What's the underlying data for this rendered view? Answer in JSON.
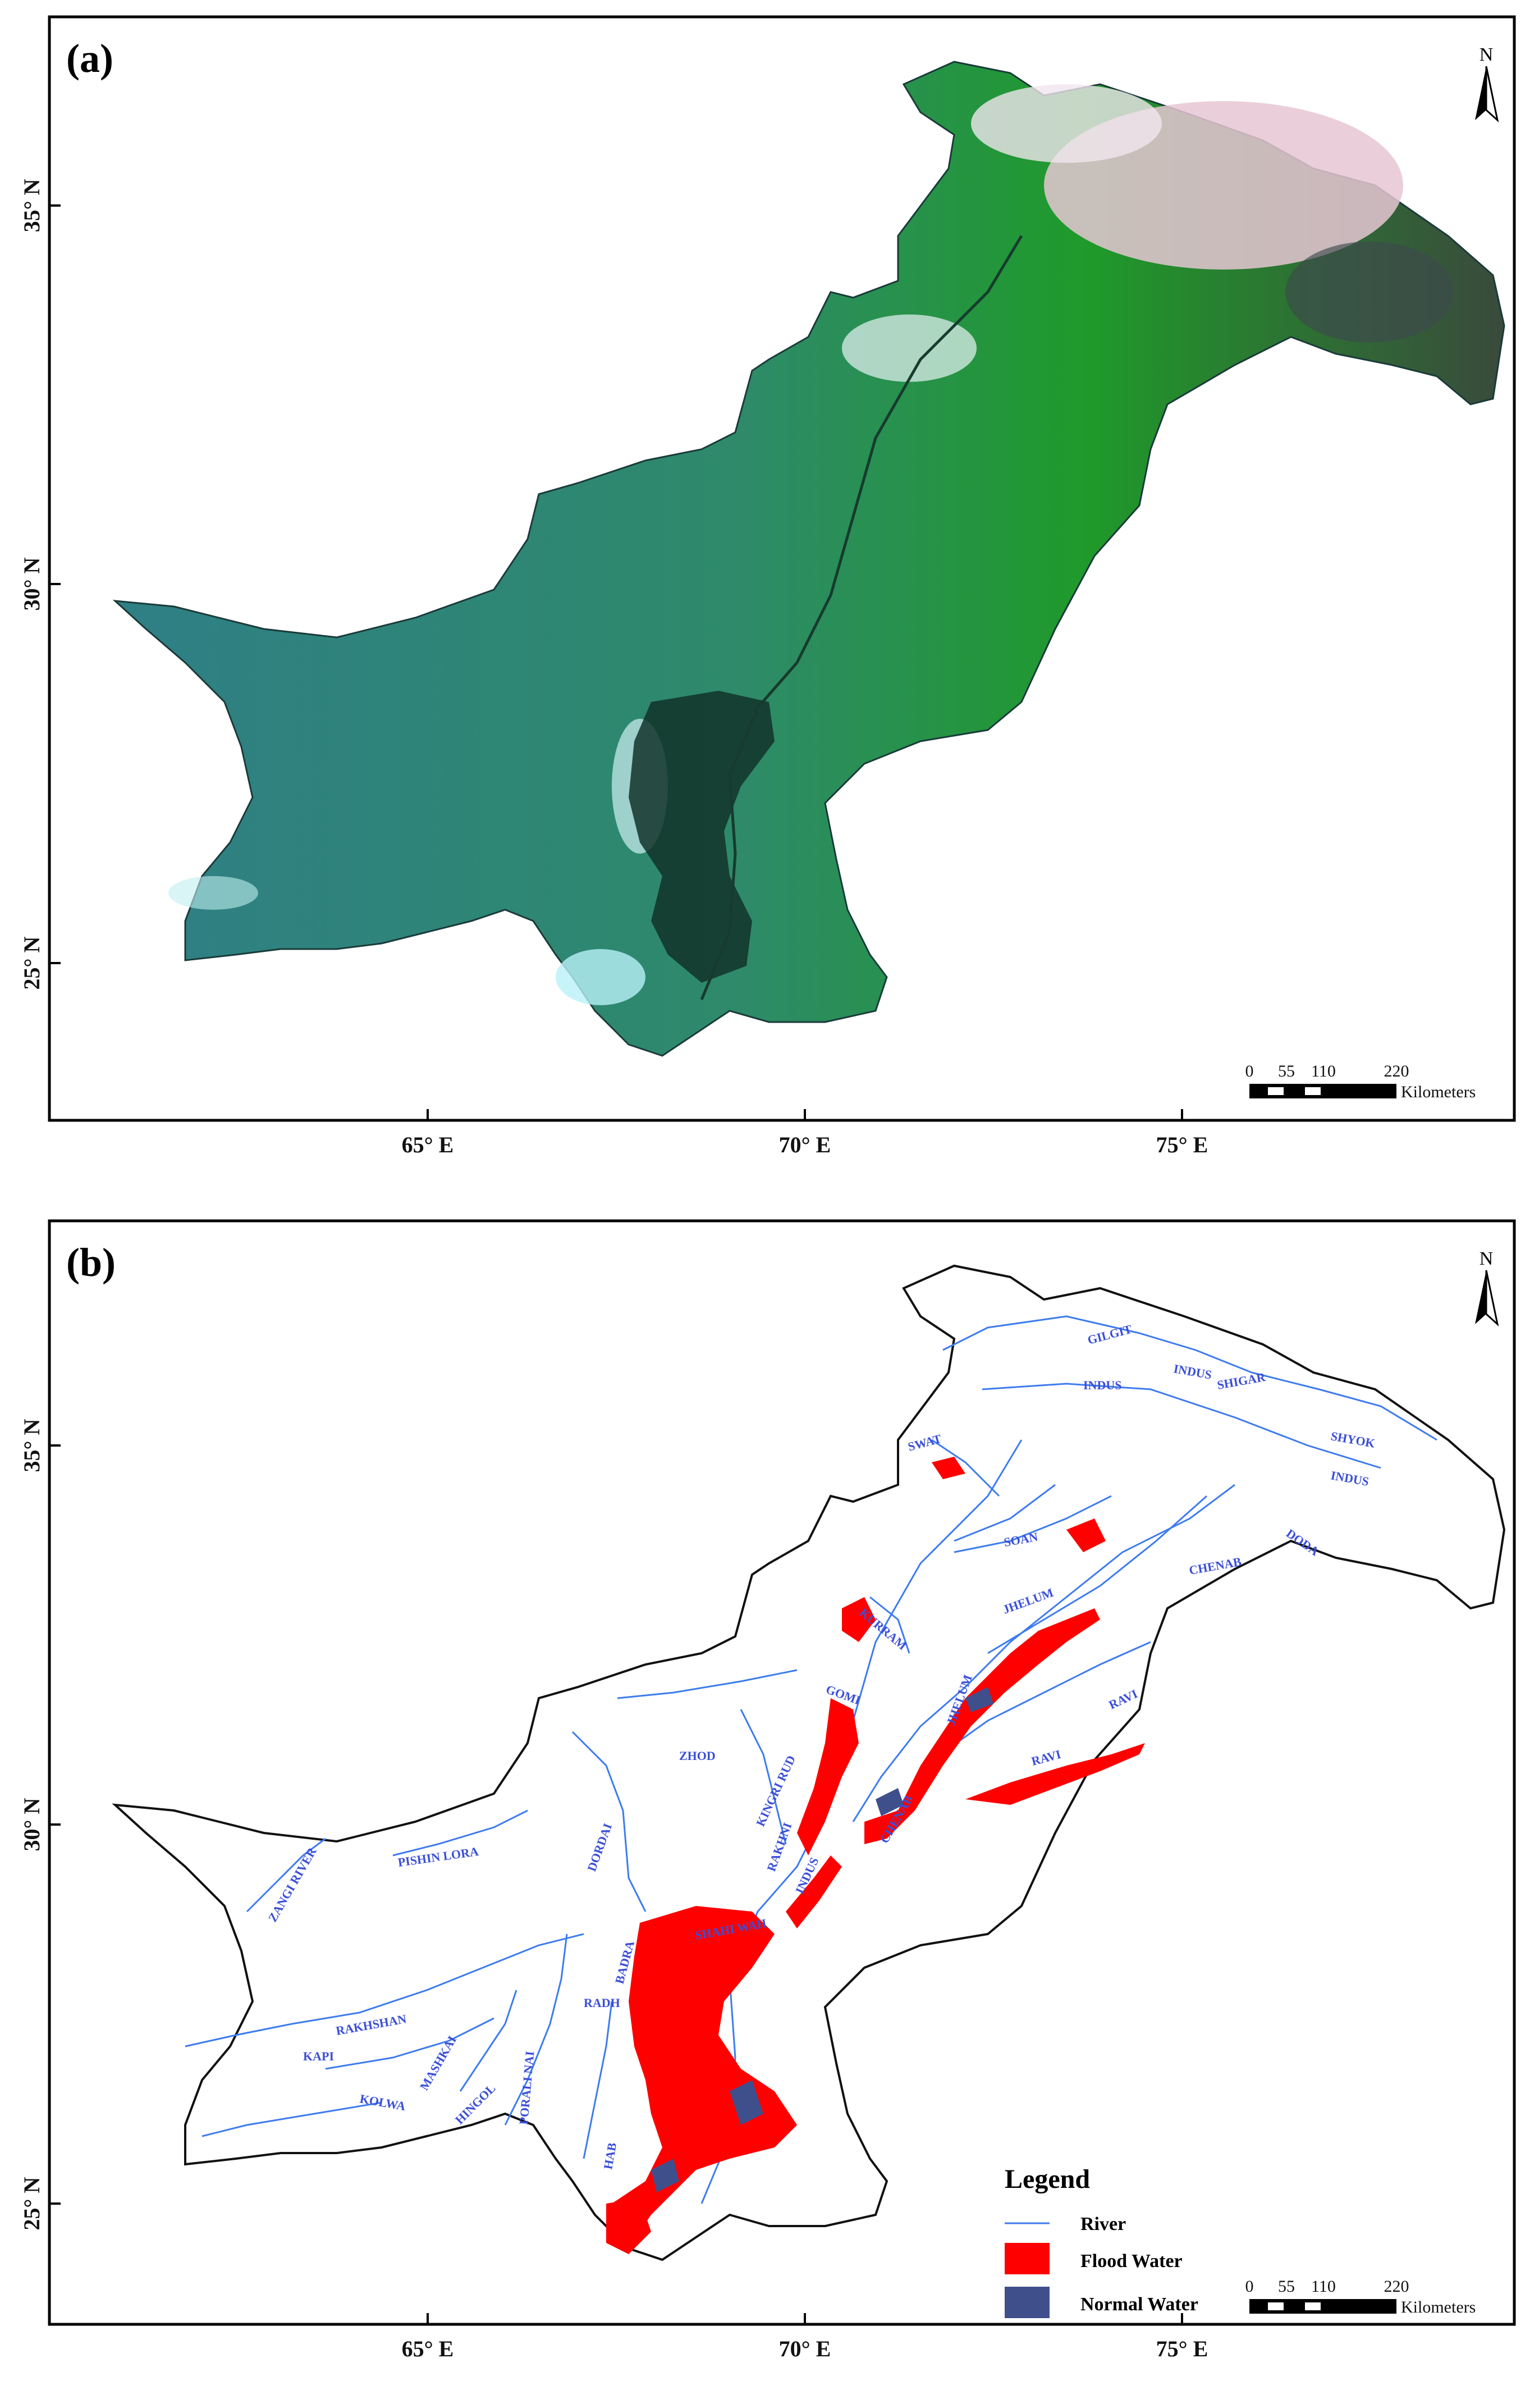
{
  "panel_a": {
    "label": "(a)",
    "north": "N",
    "lat_ticks": [
      "35° N",
      "30° N",
      "25° N"
    ],
    "lon_ticks": [
      "65° E",
      "70° E",
      "75° E"
    ],
    "scale": {
      "values": [
        "0",
        "55",
        "110",
        "220"
      ],
      "unit": "Kilometers"
    }
  },
  "panel_b": {
    "label": "(b)",
    "north": "N",
    "lat_ticks": [
      "35° N",
      "30° N",
      "25° N"
    ],
    "lon_ticks": [
      "65° E",
      "70° E",
      "75° E"
    ],
    "scale": {
      "values": [
        "0",
        "55",
        "110",
        "220"
      ],
      "unit": "Kilometers"
    },
    "legend": {
      "title": "Legend",
      "items": [
        {
          "label": "River",
          "color": "#3d7bf0"
        },
        {
          "label": "Flood Water",
          "color": "#ff0000"
        },
        {
          "label": "Normal Water",
          "color": "#3f4f8c"
        }
      ]
    },
    "river_labels": [
      "GILGIT",
      "INDUS",
      "INDUS",
      "SHIGAR",
      "SWAT",
      "SHYOK",
      "INDUS",
      "DODA",
      "SOAN",
      "CHENAB",
      "KURRAM",
      "JHELUM",
      "GOMI",
      "JHELUM",
      "RAVI",
      "RAVI",
      "ZHOD",
      "KINGRI RUD",
      "RAKHNI",
      "CHENAB",
      "INDUS",
      "PISHIN LORA",
      "ZANGI RIVER",
      "DORDAI",
      "SHAHI WAH",
      "BADRA",
      "RADH",
      "RAKHSHAN",
      "KAPI",
      "MASHKAI",
      "KOLWA",
      "HINGOL",
      "PORALI NAI",
      "HAB"
    ]
  },
  "colors": {
    "flood": "#ff0000",
    "normal_water": "#3f4f8c",
    "river": "#3d7bf0"
  }
}
